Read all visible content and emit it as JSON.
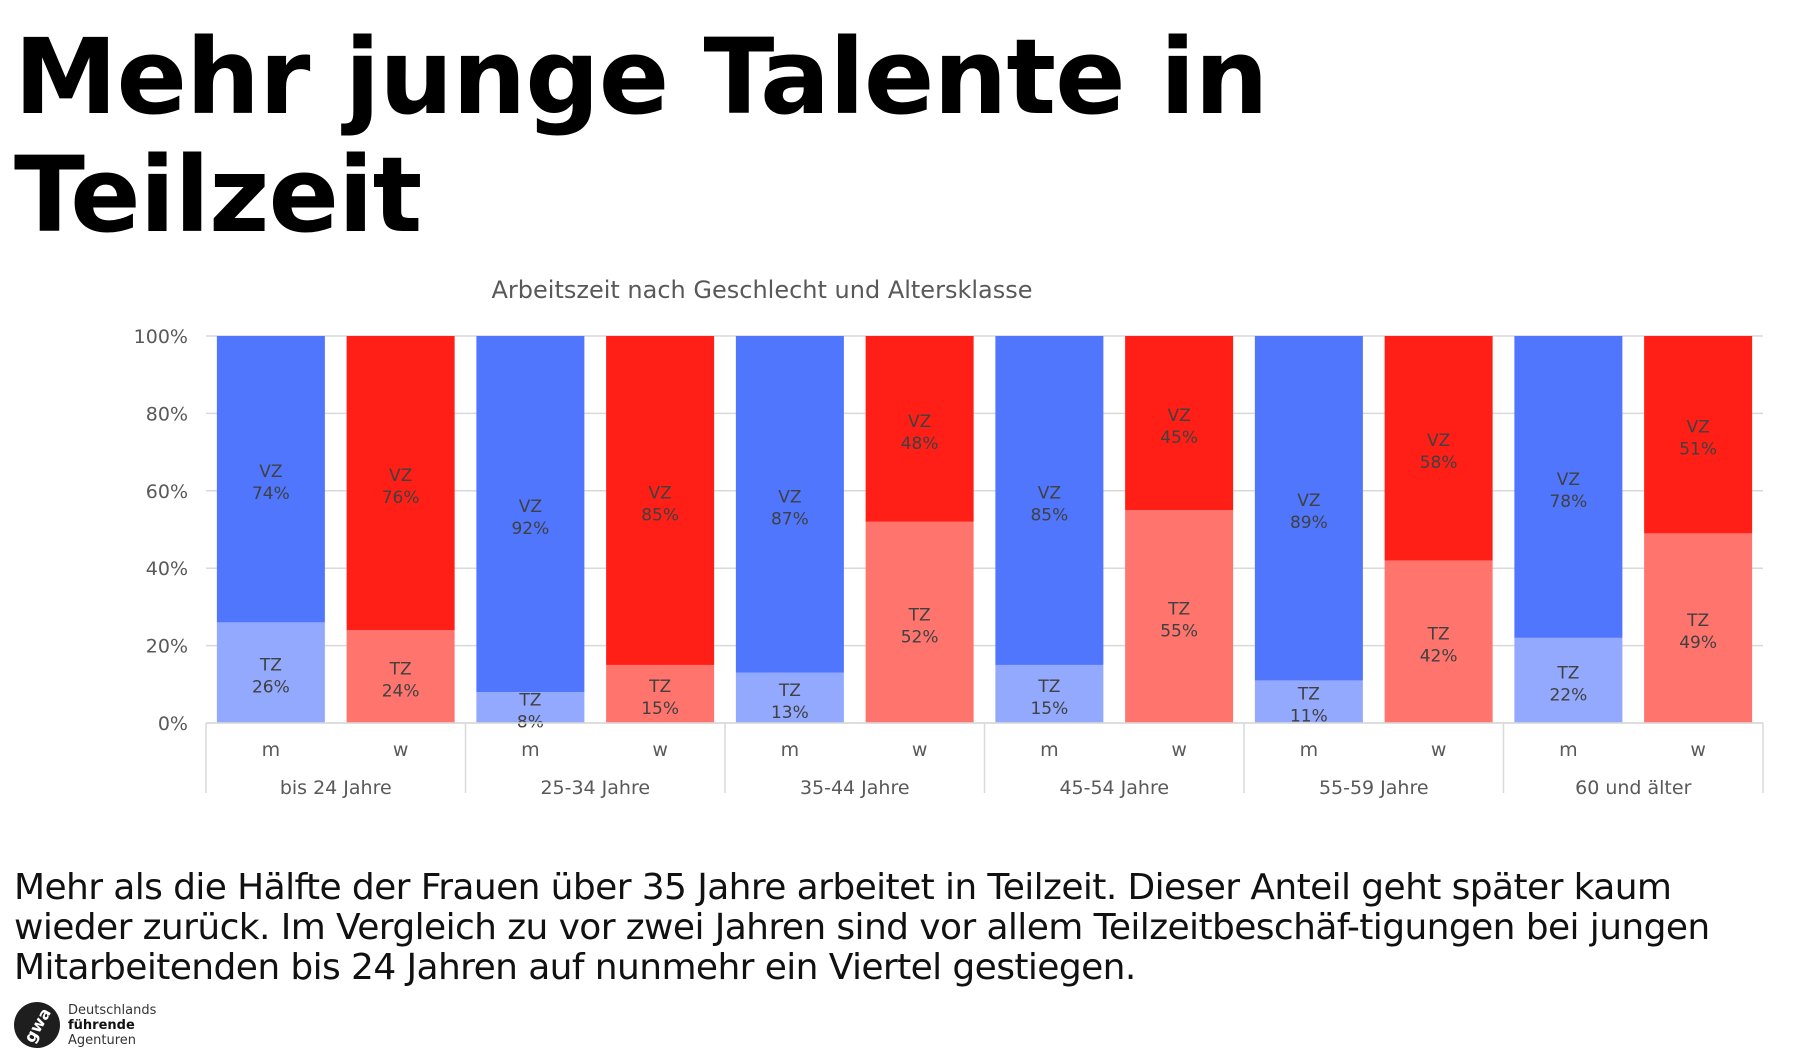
{
  "headline": "Mehr junge Talente in Teilzeit",
  "summary": "Mehr als die Hälfte der Frauen über 35 Jahre arbeitet in Teilzeit. Dieser Anteil geht später kaum wieder zurück. Im Vergleich zu vor zwei Jahren sind vor allem Teilzeitbeschäf-tigungen bei jungen Mitarbeitenden bis 24 Jahren auf nunmehr ein Viertel gestiegen.",
  "logo": {
    "mark": "gwa",
    "line1": "Deutschlands",
    "line2": "führende",
    "line3": "Agenturen"
  },
  "colors": {
    "male_vz": "#4f76fd",
    "male_tz": "#93a9fd",
    "female_vz": "#ff1f17",
    "female_tz": "#ff756e",
    "grid": "#d9d9d9",
    "label": "#404040"
  },
  "chart_data": {
    "type": "bar",
    "stacked": true,
    "title": "Arbeitszeit nach Geschlecht und Altersklasse",
    "xlabel": "",
    "ylabel": "",
    "ylim": [
      0,
      100
    ],
    "yticks": [
      "0%",
      "20%",
      "40%",
      "60%",
      "80%",
      "100%"
    ],
    "grid": true,
    "legend": "none",
    "groups": [
      "bis 24 Jahre",
      "25-34 Jahre",
      "35-44 Jahre",
      "45-54 Jahre",
      "55-59 Jahre",
      "60 und älter"
    ],
    "subcategories": [
      "m",
      "w"
    ],
    "series": [
      {
        "name": "TZ",
        "label": "TZ",
        "values": [
          [
            26,
            24
          ],
          [
            8,
            15
          ],
          [
            13,
            52
          ],
          [
            15,
            55
          ],
          [
            11,
            42
          ],
          [
            22,
            49
          ]
        ]
      },
      {
        "name": "VZ",
        "label": "VZ",
        "values": [
          [
            74,
            76
          ],
          [
            92,
            85
          ],
          [
            87,
            48
          ],
          [
            85,
            45
          ],
          [
            89,
            58
          ],
          [
            78,
            51
          ]
        ]
      }
    ],
    "value_suffix": "%"
  }
}
